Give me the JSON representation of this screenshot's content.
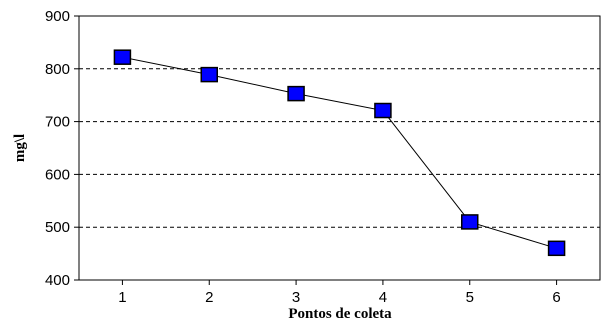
{
  "chart_data": {
    "type": "line",
    "title": "",
    "xlabel": "Pontos de coleta",
    "ylabel": "mg\\l",
    "x": [
      1,
      2,
      3,
      4,
      5,
      6
    ],
    "y": [
      822,
      789,
      753,
      721,
      510,
      460
    ],
    "xlim": [
      0.5,
      6.5
    ],
    "ylim": [
      400,
      900
    ],
    "yticks": [
      400,
      500,
      600,
      700,
      800,
      900
    ],
    "xticks": [
      1,
      2,
      3,
      4,
      5,
      6
    ],
    "grid": "horizontal dashed",
    "legend": "none",
    "marker_color": "#0000ff",
    "line_color": "#000000"
  }
}
